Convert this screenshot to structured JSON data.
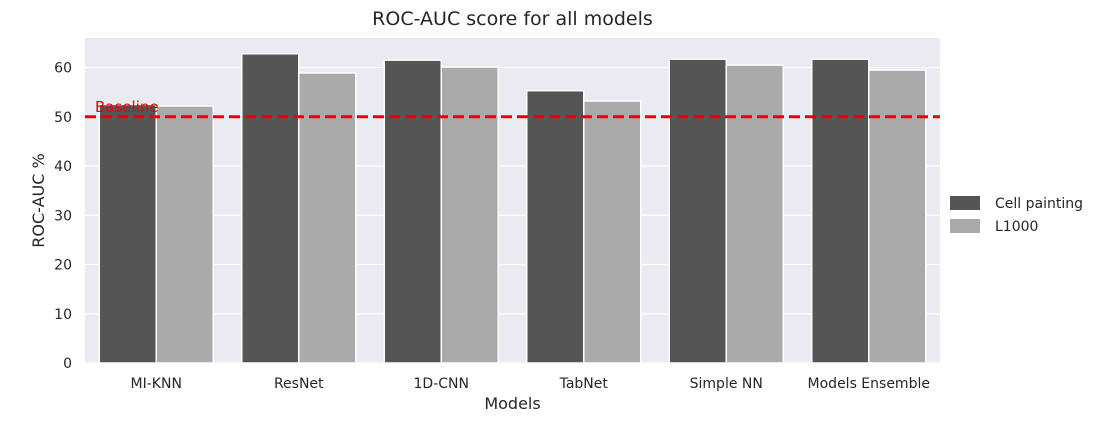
{
  "chart_data": {
    "type": "bar",
    "title": "ROC-AUC score for all models",
    "xlabel": "Models",
    "ylabel": "ROC-AUC %",
    "categories": [
      "MI-KNN",
      "ResNet",
      "1D-CNN",
      "TabNet",
      "Simple NN",
      "Models Ensemble"
    ],
    "series": [
      {
        "name": "Cell painting",
        "color": "#555555",
        "values": [
          52.5,
          62.8,
          61.5,
          55.3,
          61.7,
          61.7
        ]
      },
      {
        "name": "L1000",
        "color": "#aaaaaa",
        "values": [
          52.2,
          58.9,
          60.1,
          53.2,
          60.5,
          59.5
        ]
      }
    ],
    "ylim": [
      0,
      66
    ],
    "yticks": [
      0,
      10,
      20,
      30,
      40,
      50,
      60
    ],
    "grid": true,
    "background": "#eaeaf2",
    "legend_position": "right",
    "baseline": {
      "label": "Baseline",
      "value": 50,
      "color": "#e8000b",
      "style": "dashed"
    }
  }
}
